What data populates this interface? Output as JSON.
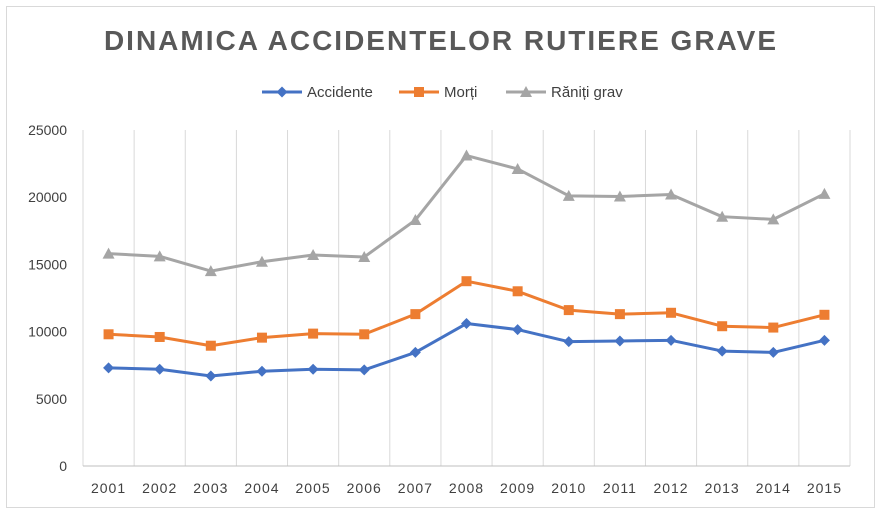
{
  "chart_data": {
    "type": "line",
    "title": "DINAMICA ACCIDENTELOR RUTIERE GRAVE",
    "categories": [
      "2001",
      "2002",
      "2003",
      "2004",
      "2005",
      "2006",
      "2007",
      "2008",
      "2009",
      "2010",
      "2011",
      "2012",
      "2013",
      "2014",
      "2015"
    ],
    "ylim": [
      0,
      25000
    ],
    "yticks": [
      0,
      5000,
      10000,
      15000,
      20000,
      25000
    ],
    "grid": "vertical",
    "legend_position": "top",
    "series": [
      {
        "name": "Accidente",
        "color": "#4472C4",
        "marker": "diamond",
        "values": [
          7300,
          7200,
          6700,
          7050,
          7200,
          7150,
          8450,
          10600,
          10150,
          9250,
          9300,
          9350,
          8550,
          8450,
          9350
        ]
      },
      {
        "name": "Morți",
        "color": "#ED7D31",
        "marker": "square",
        "values": [
          9800,
          9600,
          8950,
          9550,
          9850,
          9800,
          11300,
          13750,
          13000,
          11600,
          11300,
          11400,
          10400,
          10300,
          11250
        ]
      },
      {
        "name": "Răniți grav",
        "color": "#A5A5A5",
        "marker": "triangle",
        "values": [
          15800,
          15600,
          14500,
          15200,
          15700,
          15550,
          18300,
          23100,
          22100,
          20100,
          20050,
          20200,
          18550,
          18350,
          20250
        ]
      }
    ]
  }
}
